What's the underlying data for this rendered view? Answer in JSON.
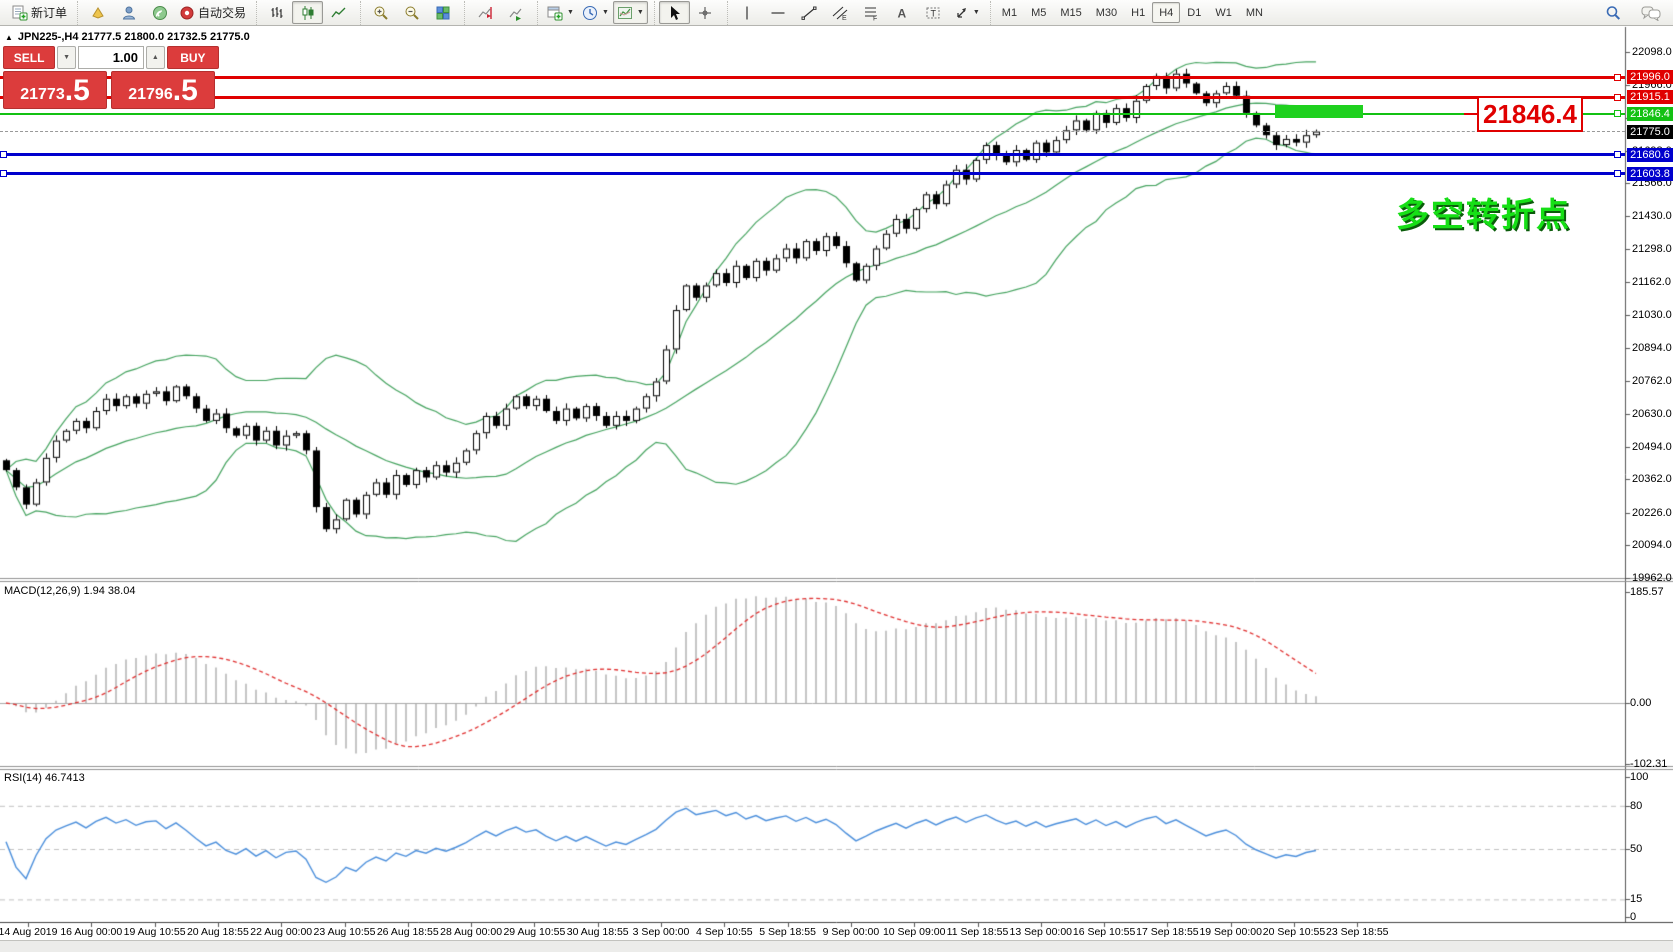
{
  "toolbar": {
    "new_order_label": "新订单",
    "autotrading_label": "自动交易",
    "groups": [
      {
        "items": [
          {
            "icon": "new-order",
            "label": "新订单"
          }
        ]
      },
      {
        "items": [
          {
            "icon": "styler"
          },
          {
            "icon": "profile"
          },
          {
            "icon": "signals"
          },
          {
            "icon": "autotrading",
            "label": "自动交易"
          }
        ]
      },
      {
        "items": [
          {
            "icon": "bars"
          },
          {
            "icon": "candles",
            "active": true
          },
          {
            "icon": "line-chart"
          }
        ]
      },
      {
        "items": [
          {
            "icon": "zoom-in"
          },
          {
            "icon": "zoom-out"
          },
          {
            "icon": "tile-windows"
          }
        ]
      },
      {
        "items": [
          {
            "icon": "shift-end",
            "active": false
          },
          {
            "icon": "auto-scroll",
            "active": false
          }
        ]
      },
      {
        "items": [
          {
            "icon": "new-chart",
            "caret": true
          },
          {
            "icon": "period",
            "caret": true
          },
          {
            "icon": "template",
            "caret": true,
            "active": true
          }
        ]
      },
      {
        "items": [
          {
            "icon": "cursor",
            "active": true
          },
          {
            "icon": "crosshair"
          }
        ]
      },
      {
        "items": [
          {
            "icon": "vline"
          },
          {
            "icon": "hline"
          },
          {
            "icon": "trendline"
          },
          {
            "icon": "channel"
          },
          {
            "icon": "fibo"
          },
          {
            "icon": "text"
          },
          {
            "icon": "text-label"
          },
          {
            "icon": "arrows",
            "caret": true
          }
        ]
      }
    ],
    "timeframes": [
      "M1",
      "M5",
      "M15",
      "M30",
      "H1",
      "H4",
      "D1",
      "W1",
      "MN"
    ],
    "active_timeframe": "H4",
    "right_icons": [
      "search",
      "chat"
    ]
  },
  "chart": {
    "collapse_glyph": "▲",
    "title": "JPN225-,H4  21777.5 21800.0 21732.5 21775.0",
    "symbol": "JPN225-",
    "period": "H4"
  },
  "trade_panel": {
    "sell_label": "SELL",
    "buy_label": "BUY",
    "volume": "1.00",
    "spin_down_glyph": "▼",
    "spin_up_glyph": "▲",
    "sell_price_main": "21773",
    "sell_price_frac": ".5",
    "buy_price_main": "21796",
    "buy_price_frac": ".5"
  },
  "indicators": {
    "macd_label": "MACD(12,26,9) 1.94 38.04",
    "rsi_label": "RSI(14) 46.7413"
  },
  "annotations": {
    "big_price": "21846.4",
    "chinese_note": "多空转折点"
  },
  "axes": {
    "main_ticks": [
      "22098.0",
      "21966.0",
      "21830.0",
      "21698.0",
      "21566.0",
      "21430.0",
      "21298.0",
      "21162.0",
      "21030.0",
      "20894.0",
      "20762.0",
      "20630.0",
      "20494.0",
      "20362.0",
      "20226.0",
      "20094.0",
      "19962.0"
    ],
    "macd_ticks": [
      {
        "label": "185.57",
        "value": 185.57
      },
      {
        "label": "0.00",
        "value": 0
      },
      {
        "label": "-102.31",
        "value": -102.31
      }
    ],
    "rsi_ticks": [
      {
        "label": "100",
        "value": 100
      },
      {
        "label": "80",
        "value": 80
      },
      {
        "label": "50",
        "value": 50
      },
      {
        "label": "15",
        "value": 15
      },
      {
        "label": "0",
        "value": 0
      }
    ],
    "time_labels": [
      "14 Aug 2019",
      "16 Aug 00:00",
      "19 Aug 10:55",
      "20 Aug 18:55",
      "22 Aug 00:00",
      "23 Aug 10:55",
      "26 Aug 18:55",
      "28 Aug 00:00",
      "29 Aug 10:55",
      "30 Aug 18:55",
      "3 Sep 00:00",
      "4 Sep 10:55",
      "5 Sep 18:55",
      "9 Sep 00:00",
      "10 Sep 09:00",
      "11 Sep 18:55",
      "13 Sep 00:00",
      "16 Sep 10:55",
      "17 Sep 18:55",
      "19 Sep 00:00",
      "20 Sep 10:55",
      "23 Sep 18:55"
    ]
  },
  "levels": [
    {
      "label": "21996.0",
      "price": 21996.0,
      "color": "#e00000",
      "width": 3,
      "style": "solid",
      "handle": true
    },
    {
      "label": "21915.1",
      "price": 21915.1,
      "color": "#e00000",
      "width": 3,
      "style": "solid",
      "handle": true
    },
    {
      "label": "21846.4",
      "price": 21846.4,
      "color": "#13c113",
      "width": 2,
      "style": "solid",
      "handle": true
    },
    {
      "label": "21775.0",
      "price": 21775.0,
      "color": "#000000",
      "width": 1,
      "style": "dashed",
      "handle": false,
      "role": "current-price"
    },
    {
      "label": "21680.6",
      "price": 21680.6,
      "color": "#0000cd",
      "width": 3,
      "style": "solid",
      "handle": true,
      "left_handle": true
    },
    {
      "label": "21603.8",
      "price": 21603.8,
      "color": "#0000cd",
      "width": 3,
      "style": "solid",
      "handle": true,
      "left_handle": true
    }
  ],
  "chart_data": {
    "type": "candlestick",
    "symbol": "JPN225-",
    "timeframe": "H4",
    "title": "JPN225-,H4",
    "ohlc_current": {
      "open": 21777.5,
      "high": 21800.0,
      "low": 21732.5,
      "close": 21775.0
    },
    "ylim": [
      19962,
      22098
    ],
    "bid": 21773.5,
    "ask": 21796.5,
    "closes": [
      20400,
      20330,
      20260,
      20350,
      20450,
      20520,
      20560,
      20600,
      20570,
      20640,
      20690,
      20660,
      20700,
      20670,
      20710,
      20720,
      20680,
      20740,
      20700,
      20650,
      20600,
      20630,
      20570,
      20540,
      20580,
      20520,
      20560,
      20500,
      20540,
      20550,
      20480,
      20250,
      20160,
      20200,
      20280,
      20220,
      20300,
      20350,
      20300,
      20380,
      20340,
      20400,
      20370,
      20420,
      20390,
      20430,
      20480,
      20550,
      20620,
      20580,
      20650,
      20700,
      20660,
      20690,
      20640,
      20600,
      20650,
      20610,
      20660,
      20620,
      20580,
      20620,
      20600,
      20650,
      20700,
      20760,
      20890,
      21050,
      21150,
      21100,
      21150,
      21200,
      21160,
      21230,
      21180,
      21250,
      21210,
      21260,
      21300,
      21260,
      21330,
      21290,
      21350,
      21310,
      21240,
      21170,
      21230,
      21300,
      21360,
      21420,
      21380,
      21460,
      21520,
      21480,
      21560,
      21620,
      21580,
      21660,
      21720,
      21680,
      21650,
      21700,
      21660,
      21730,
      21690,
      21740,
      21780,
      21820,
      21780,
      21850,
      21810,
      21870,
      21830,
      21900,
      21960,
      22000,
      21950,
      22010,
      21970,
      21930,
      21890,
      21930,
      21960,
      21920,
      21850,
      21800,
      21760,
      21720,
      21745,
      21730,
      21760,
      21775
    ],
    "indicator_settings": {
      "bollinger": {
        "period": 20,
        "deviation": 2,
        "color": "#45a35f"
      },
      "macd": {
        "fast": 12,
        "slow": 26,
        "signal": 9,
        "current_main": 1.94,
        "current_signal": 38.04,
        "scale": [
          -102.31,
          185.57
        ],
        "hist_color": "#c4c4c4",
        "signal_color": "#e03030"
      },
      "rsi": {
        "period": 14,
        "current": 46.7413,
        "levels": [
          80,
          50,
          15
        ],
        "scale": [
          0,
          100
        ],
        "color": "#4a8edb"
      }
    },
    "h_lines": [
      {
        "price": 21996.0,
        "color": "#e00000"
      },
      {
        "price": 21915.1,
        "color": "#e00000"
      },
      {
        "price": 21846.4,
        "color": "#13c113"
      },
      {
        "price": 21775.0,
        "color": "#999999",
        "role": "current-price"
      },
      {
        "price": 21680.6,
        "color": "#0000cd"
      },
      {
        "price": 21603.8,
        "color": "#0000cd"
      }
    ]
  }
}
